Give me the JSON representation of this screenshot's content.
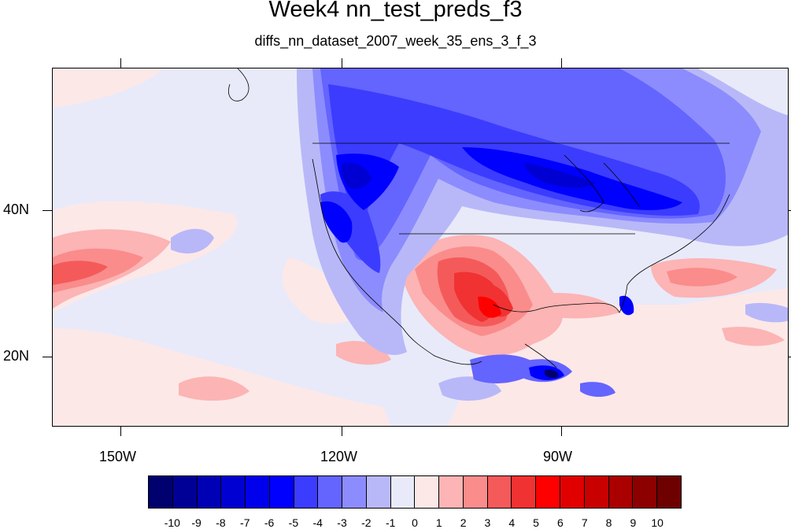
{
  "figure": {
    "title": "Week4 nn_test_preds_f3",
    "subtitle": "diffs_nn_dataset_2007_week_35_ens_3_f_3"
  },
  "axes": {
    "lat_labels": [
      {
        "text": "40N",
        "lat": 40
      },
      {
        "text": "20N",
        "lat": 20
      }
    ],
    "lon_labels": [
      {
        "text": "150W",
        "lon": -150
      },
      {
        "text": "120W",
        "lon": -120
      },
      {
        "text": "90W",
        "lon": -90
      }
    ],
    "lon_range": [
      -159,
      -59
    ],
    "lat_range": [
      11,
      60
    ]
  },
  "colorbar": {
    "labels": [
      "-10",
      "-9",
      "-8",
      "-7",
      "-6",
      "-5",
      "-4",
      "-3",
      "-2",
      "-1",
      "0",
      "1",
      "2",
      "3",
      "4",
      "5",
      "6",
      "7",
      "8",
      "9",
      "10"
    ],
    "colors": [
      "#00006e",
      "#000096",
      "#0000b4",
      "#0000d2",
      "#0000ec",
      "#0000ff",
      "#3c3cff",
      "#6464ff",
      "#8c8cff",
      "#b8b8f8",
      "#e8eafa",
      "#fde8e8",
      "#fcb4b4",
      "#fa8c8c",
      "#f55a5a",
      "#f03232",
      "#ff0000",
      "#e10000",
      "#c80000",
      "#aa0000",
      "#8c0000",
      "#6e0000"
    ]
  }
}
